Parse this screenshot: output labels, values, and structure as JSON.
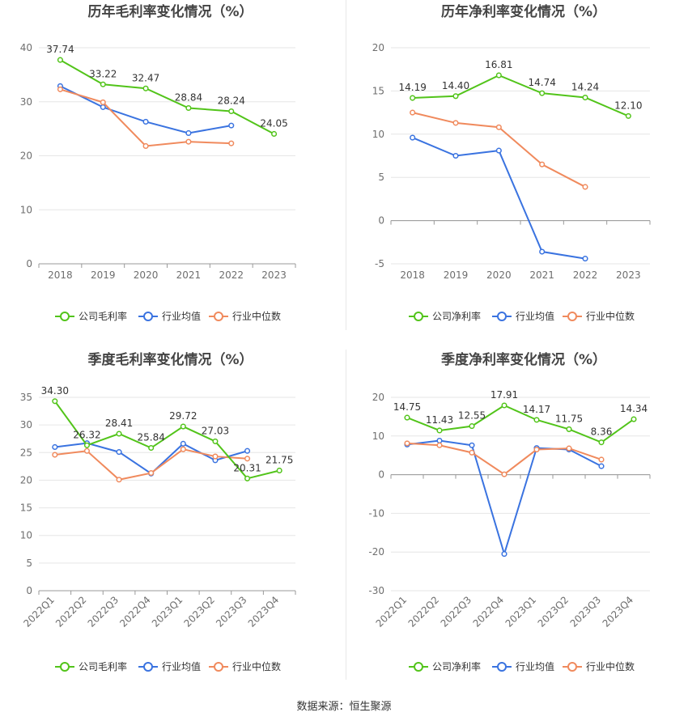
{
  "colors": {
    "company": "#52c41a",
    "industry_avg": "#3a73e0",
    "industry_median": "#f08a5d",
    "grid": "#e6e6e6",
    "axis_text": "#6e6e6e",
    "label_text": "#333333",
    "title_text": "#444444"
  },
  "source": "数据来源：恒生聚源",
  "chart_data": [
    {
      "type": "line",
      "title": "历年毛利率变化情况（%）",
      "categories": [
        "2018",
        "2019",
        "2020",
        "2021",
        "2022",
        "2023"
      ],
      "ylim": [
        0,
        40
      ],
      "yticks": [
        0,
        10,
        20,
        30,
        40
      ],
      "legend_position": "bottom",
      "series": [
        {
          "name": "公司毛利率",
          "key": "company",
          "values": [
            37.74,
            33.22,
            32.47,
            28.84,
            28.24,
            24.05
          ],
          "labels": [
            "37.74",
            "33.22",
            "32.47",
            "28.84",
            "28.24",
            "24.05"
          ]
        },
        {
          "name": "行业均值",
          "key": "industry_avg",
          "values": [
            32.9,
            29.0,
            26.3,
            24.2,
            25.6,
            null
          ]
        },
        {
          "name": "行业中位数",
          "key": "industry_median",
          "values": [
            32.3,
            29.9,
            21.8,
            22.6,
            22.3,
            null
          ]
        }
      ]
    },
    {
      "type": "line",
      "title": "历年净利率变化情况（%）",
      "categories": [
        "2018",
        "2019",
        "2020",
        "2021",
        "2022",
        "2023"
      ],
      "ylim": [
        -5,
        20
      ],
      "yticks": [
        -5,
        0,
        5,
        10,
        15,
        20
      ],
      "legend_position": "bottom",
      "series": [
        {
          "name": "公司净利率",
          "key": "company",
          "values": [
            14.19,
            14.4,
            16.81,
            14.74,
            14.24,
            12.1
          ],
          "labels": [
            "14.19",
            "14.40",
            "16.81",
            "14.74",
            "14.24",
            "12.10"
          ]
        },
        {
          "name": "行业均值",
          "key": "industry_avg",
          "values": [
            9.6,
            7.5,
            8.1,
            -3.6,
            -4.4,
            null
          ]
        },
        {
          "name": "行业中位数",
          "key": "industry_median",
          "values": [
            12.5,
            11.3,
            10.8,
            6.5,
            3.9,
            null
          ]
        }
      ]
    },
    {
      "type": "line",
      "title": "季度毛利率变化情况（%）",
      "categories": [
        "2022Q1",
        "2022Q2",
        "2022Q3",
        "2022Q4",
        "2023Q1",
        "2023Q2",
        "2023Q3",
        "2023Q4"
      ],
      "ylim": [
        0,
        35
      ],
      "yticks": [
        0,
        5,
        10,
        15,
        20,
        25,
        30,
        35
      ],
      "rotate_x_labels": true,
      "legend_position": "bottom",
      "series": [
        {
          "name": "公司毛利率",
          "key": "company",
          "values": [
            34.3,
            26.32,
            28.41,
            25.84,
            29.72,
            27.03,
            20.31,
            21.75
          ],
          "labels": [
            "34.30",
            "26.32",
            "28.41",
            "25.84",
            "29.72",
            "27.03",
            "20.31",
            "21.75"
          ]
        },
        {
          "name": "行业均值",
          "key": "industry_avg",
          "values": [
            26.0,
            26.7,
            25.1,
            21.2,
            26.6,
            23.6,
            25.3,
            null
          ]
        },
        {
          "name": "行业中位数",
          "key": "industry_median",
          "values": [
            24.6,
            25.3,
            20.1,
            21.3,
            25.6,
            24.3,
            23.9,
            null
          ]
        }
      ]
    },
    {
      "type": "line",
      "title": "季度净利率变化情况（%）",
      "categories": [
        "2022Q1",
        "2022Q2",
        "2022Q3",
        "2022Q4",
        "2023Q1",
        "2023Q2",
        "2023Q3",
        "2023Q4"
      ],
      "ylim": [
        -30,
        20
      ],
      "yticks": [
        -30,
        -20,
        -10,
        0,
        10,
        20
      ],
      "rotate_x_labels": true,
      "legend_position": "bottom",
      "series": [
        {
          "name": "公司净利率",
          "key": "company",
          "values": [
            14.75,
            11.43,
            12.55,
            17.91,
            14.17,
            11.75,
            8.36,
            14.34
          ],
          "labels": [
            "14.75",
            "11.43",
            "12.55",
            "17.91",
            "14.17",
            "11.75",
            "8.36",
            "14.34"
          ]
        },
        {
          "name": "行业均值",
          "key": "industry_avg",
          "values": [
            7.8,
            8.8,
            7.6,
            -20.5,
            6.9,
            6.5,
            2.2,
            null
          ]
        },
        {
          "name": "行业中位数",
          "key": "industry_median",
          "values": [
            8.1,
            7.6,
            5.7,
            0.1,
            6.5,
            6.8,
            3.9,
            null
          ]
        }
      ]
    }
  ]
}
